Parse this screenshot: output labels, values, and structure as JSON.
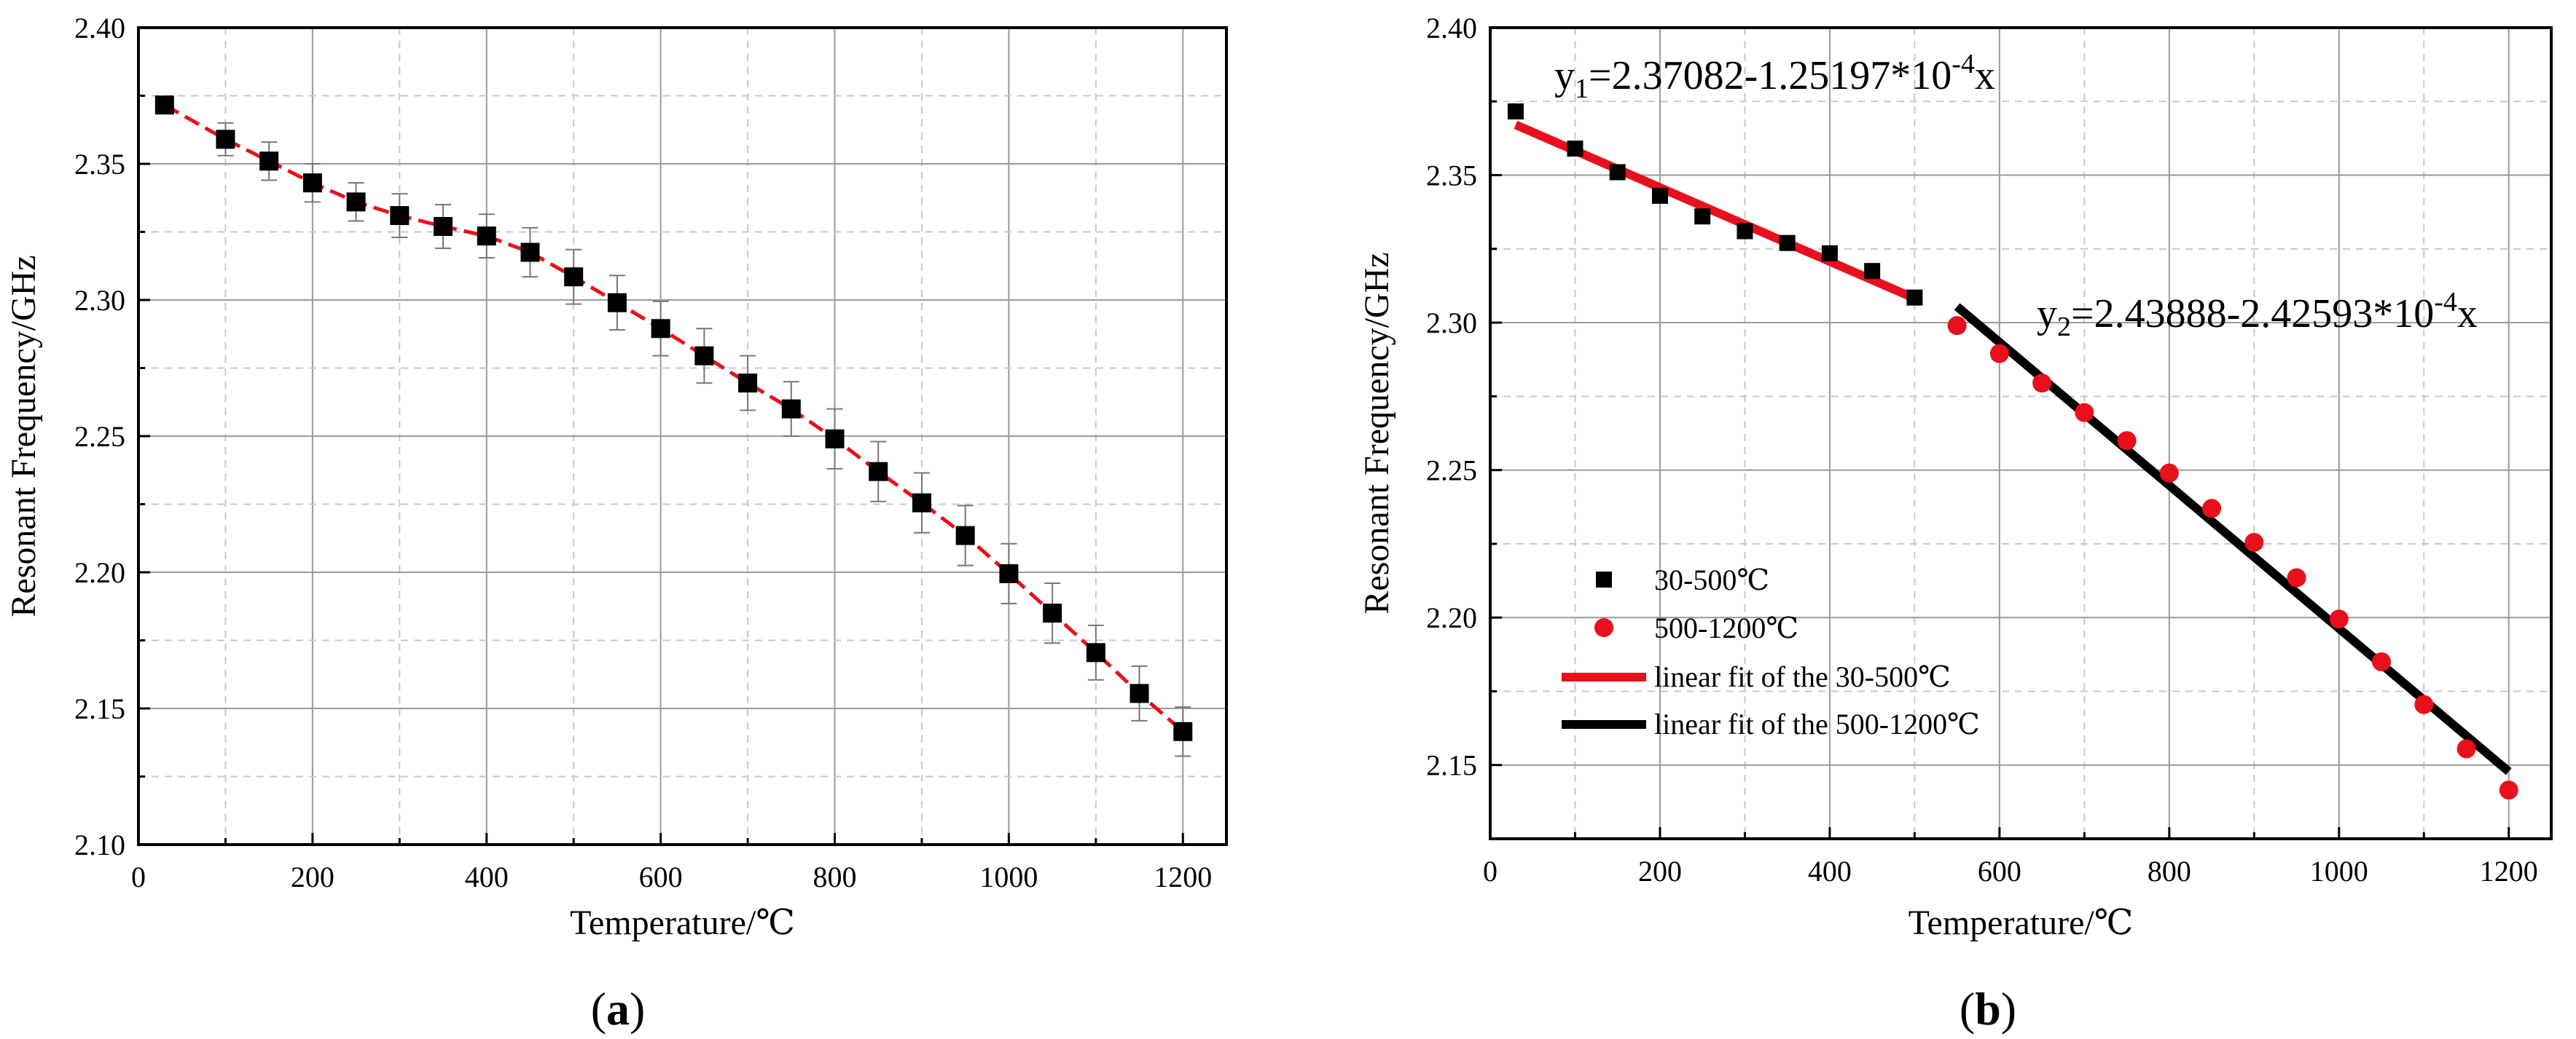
{
  "chart_data": [
    {
      "panel": "(a)",
      "type": "line",
      "title": "",
      "xlabel": "Temperature/℃",
      "ylabel": "Resonant Frequency/GHz",
      "xlim": [
        0,
        1250
      ],
      "ylim": [
        2.1,
        2.4
      ],
      "xticks": [
        0,
        200,
        400,
        600,
        800,
        1000,
        1200
      ],
      "yticks": [
        2.1,
        2.15,
        2.2,
        2.25,
        2.3,
        2.35,
        2.4
      ],
      "xtick_labels": [
        "0",
        "200",
        "400",
        "600",
        "800",
        "1000",
        "1200"
      ],
      "ytick_labels": [
        "2.10",
        "2.15",
        "2.20",
        "2.25",
        "2.30",
        "2.35",
        "2.40"
      ],
      "grid": true,
      "series": [
        {
          "name": "Resonant frequency",
          "marker": "square",
          "color": "#000000",
          "line_color": "#e8101c",
          "x": [
            30,
            100,
            150,
            200,
            250,
            300,
            350,
            400,
            450,
            500,
            550,
            600,
            650,
            700,
            750,
            800,
            850,
            900,
            950,
            1000,
            1050,
            1100,
            1150,
            1200
          ],
          "y": [
            2.3716,
            2.359,
            2.351,
            2.343,
            2.336,
            2.331,
            2.327,
            2.3235,
            2.3175,
            2.3085,
            2.299,
            2.2895,
            2.2795,
            2.2695,
            2.26,
            2.249,
            2.237,
            2.2255,
            2.2135,
            2.1995,
            2.185,
            2.1705,
            2.1555,
            2.1415
          ],
          "error": [
            0,
            0.006,
            0.007,
            0.007,
            0.007,
            0.008,
            0.008,
            0.008,
            0.009,
            0.01,
            0.01,
            0.01,
            0.01,
            0.01,
            0.01,
            0.011,
            0.011,
            0.011,
            0.011,
            0.011,
            0.011,
            0.01,
            0.01,
            0.009
          ]
        }
      ]
    },
    {
      "panel": "(b)",
      "type": "scatter",
      "title": "",
      "xlabel": "Temperature/℃",
      "ylabel": "Resonant Frequency/GHz",
      "xlim": [
        0,
        1250
      ],
      "ylim": [
        2.125,
        2.4
      ],
      "xticks": [
        0,
        200,
        400,
        600,
        800,
        1000,
        1200
      ],
      "yticks": [
        2.15,
        2.2,
        2.25,
        2.3,
        2.35,
        2.4
      ],
      "xtick_labels": [
        "0",
        "200",
        "400",
        "600",
        "800",
        "1000",
        "1200"
      ],
      "ytick_labels": [
        "2.15",
        "2.20",
        "2.25",
        "2.30",
        "2.35",
        "2.40"
      ],
      "grid": true,
      "legend_position": "lower-left",
      "series": [
        {
          "name": "30-500℃",
          "marker": "square",
          "color": "#000000",
          "x": [
            30,
            100,
            150,
            200,
            250,
            300,
            350,
            400,
            450,
            500
          ],
          "y": [
            2.3716,
            2.359,
            2.351,
            2.343,
            2.336,
            2.331,
            2.327,
            2.3235,
            2.3175,
            2.3085
          ]
        },
        {
          "name": "500-1200℃",
          "marker": "circle",
          "color": "#e8101c",
          "x": [
            550,
            600,
            650,
            700,
            750,
            800,
            850,
            900,
            950,
            1000,
            1050,
            1100,
            1150,
            1200
          ],
          "y": [
            2.299,
            2.2895,
            2.2795,
            2.2695,
            2.26,
            2.249,
            2.237,
            2.2255,
            2.2135,
            2.1995,
            2.185,
            2.1705,
            2.1555,
            2.1415
          ]
        }
      ],
      "fits": [
        {
          "name": "linear fit of the 30-500℃",
          "color": "#e8101c",
          "intercept": 2.37082,
          "slope": -0.000125197,
          "x_range": [
            30,
            500
          ]
        },
        {
          "name": "linear fit of the 500-1200℃",
          "color": "#000000",
          "intercept": 2.43888,
          "slope": -0.000242593,
          "x_range": [
            550,
            1200
          ]
        }
      ],
      "annotations": {
        "eq1": {
          "pre": "y",
          "sub": "1",
          "mid": "=2.37082-1.25197*10",
          "sup": "-4",
          "post": "x"
        },
        "eq2": {
          "pre": "y",
          "sub": "2",
          "mid": "=2.43888-2.42593*10",
          "sup": "-4",
          "post": "x"
        }
      }
    }
  ]
}
